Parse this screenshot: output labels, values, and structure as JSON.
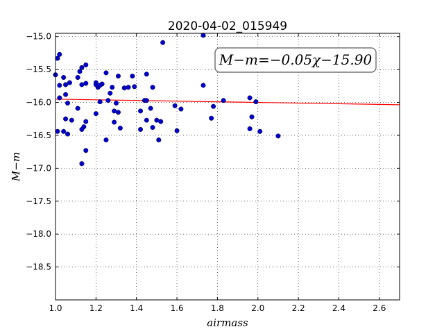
{
  "chart_data": {
    "type": "scatter",
    "title": "2020-04-02_015949",
    "xlabel": "airmass",
    "ylabel": "M−m",
    "annotation": "M−m=−0.05χ−15.90",
    "xlim": [
      1.0,
      2.7
    ],
    "ylim": [
      -19.0,
      -14.95
    ],
    "y_inverted": true,
    "grid": true,
    "x_ticks": [
      1.0,
      1.2,
      1.4,
      1.6,
      1.8,
      2.0,
      2.2,
      2.4,
      2.6
    ],
    "x_tick_labels": [
      "1.0",
      "1.2",
      "1.4",
      "1.6",
      "1.8",
      "2.0",
      "2.2",
      "2.4",
      "2.6"
    ],
    "y_ticks": [
      -15.0,
      -15.5,
      -16.0,
      -16.5,
      -17.0,
      -17.5,
      -18.0,
      -18.5
    ],
    "y_tick_labels": [
      "−15.0",
      "−15.5",
      "−16.0",
      "−16.5",
      "−17.0",
      "−17.5",
      "−18.0",
      "−18.5"
    ],
    "point_color": "#0000cc",
    "fit_color": "#ff0000",
    "fit": {
      "slope": -0.05,
      "intercept": -15.9,
      "x_range": [
        1.0,
        2.7
      ]
    },
    "points": [
      {
        "x": 1.0,
        "y": -15.58
      },
      {
        "x": 1.01,
        "y": -15.33
      },
      {
        "x": 1.02,
        "y": -15.27
      },
      {
        "x": 1.02,
        "y": -15.74
      },
      {
        "x": 1.02,
        "y": -15.93
      },
      {
        "x": 1.01,
        "y": -16.44
      },
      {
        "x": 1.04,
        "y": -16.44
      },
      {
        "x": 1.04,
        "y": -15.62
      },
      {
        "x": 1.05,
        "y": -15.73
      },
      {
        "x": 1.05,
        "y": -15.88
      },
      {
        "x": 1.06,
        "y": -16.01
      },
      {
        "x": 1.05,
        "y": -16.25
      },
      {
        "x": 1.06,
        "y": -16.48
      },
      {
        "x": 1.07,
        "y": -15.7
      },
      {
        "x": 1.08,
        "y": -16.27
      },
      {
        "x": 1.11,
        "y": -15.62
      },
      {
        "x": 1.11,
        "y": -16.09
      },
      {
        "x": 1.12,
        "y": -15.53
      },
      {
        "x": 1.13,
        "y": -15.47
      },
      {
        "x": 1.13,
        "y": -15.73
      },
      {
        "x": 1.15,
        "y": -15.43
      },
      {
        "x": 1.15,
        "y": -15.71
      },
      {
        "x": 1.15,
        "y": -16.29
      },
      {
        "x": 1.14,
        "y": -16.37
      },
      {
        "x": 1.13,
        "y": -16.41
      },
      {
        "x": 1.15,
        "y": -16.73
      },
      {
        "x": 1.13,
        "y": -16.93
      },
      {
        "x": 1.2,
        "y": -15.7
      },
      {
        "x": 1.21,
        "y": -15.77
      },
      {
        "x": 1.2,
        "y": -15.73
      },
      {
        "x": 1.2,
        "y": -16.17
      },
      {
        "x": 1.23,
        "y": -15.72
      },
      {
        "x": 1.22,
        "y": -15.74
      },
      {
        "x": 1.22,
        "y": -15.99
      },
      {
        "x": 1.25,
        "y": -15.55
      },
      {
        "x": 1.26,
        "y": -15.97
      },
      {
        "x": 1.27,
        "y": -15.86
      },
      {
        "x": 1.25,
        "y": -16.57
      },
      {
        "x": 1.28,
        "y": -15.77
      },
      {
        "x": 1.29,
        "y": -16.13
      },
      {
        "x": 1.29,
        "y": -16.3
      },
      {
        "x": 1.3,
        "y": -16.01
      },
      {
        "x": 1.31,
        "y": -15.6
      },
      {
        "x": 1.31,
        "y": -16.15
      },
      {
        "x": 1.32,
        "y": -16.39
      },
      {
        "x": 1.34,
        "y": -15.78
      },
      {
        "x": 1.36,
        "y": -15.77
      },
      {
        "x": 1.38,
        "y": -15.6
      },
      {
        "x": 1.39,
        "y": -15.76
      },
      {
        "x": 1.42,
        "y": -16.13
      },
      {
        "x": 1.42,
        "y": -16.41
      },
      {
        "x": 1.44,
        "y": -15.97
      },
      {
        "x": 1.45,
        "y": -15.97
      },
      {
        "x": 1.45,
        "y": -15.57
      },
      {
        "x": 1.45,
        "y": -16.27
      },
      {
        "x": 1.47,
        "y": -16.09
      },
      {
        "x": 1.48,
        "y": -15.77
      },
      {
        "x": 1.48,
        "y": -16.38
      },
      {
        "x": 1.5,
        "y": -16.27
      },
      {
        "x": 1.51,
        "y": -16.57
      },
      {
        "x": 1.52,
        "y": -16.29
      },
      {
        "x": 1.53,
        "y": -15.09
      },
      {
        "x": 1.59,
        "y": -16.05
      },
      {
        "x": 1.6,
        "y": -16.43
      },
      {
        "x": 1.62,
        "y": -16.1
      },
      {
        "x": 1.73,
        "y": -14.98
      },
      {
        "x": 1.73,
        "y": -15.74
      },
      {
        "x": 1.77,
        "y": -16.24
      },
      {
        "x": 1.78,
        "y": -16.06
      },
      {
        "x": 1.83,
        "y": -15.97
      },
      {
        "x": 1.96,
        "y": -15.93
      },
      {
        "x": 1.96,
        "y": -16.4
      },
      {
        "x": 1.97,
        "y": -16.22
      },
      {
        "x": 1.99,
        "y": -15.99
      },
      {
        "x": 2.01,
        "y": -16.44
      },
      {
        "x": 2.1,
        "y": -16.51
      }
    ]
  }
}
